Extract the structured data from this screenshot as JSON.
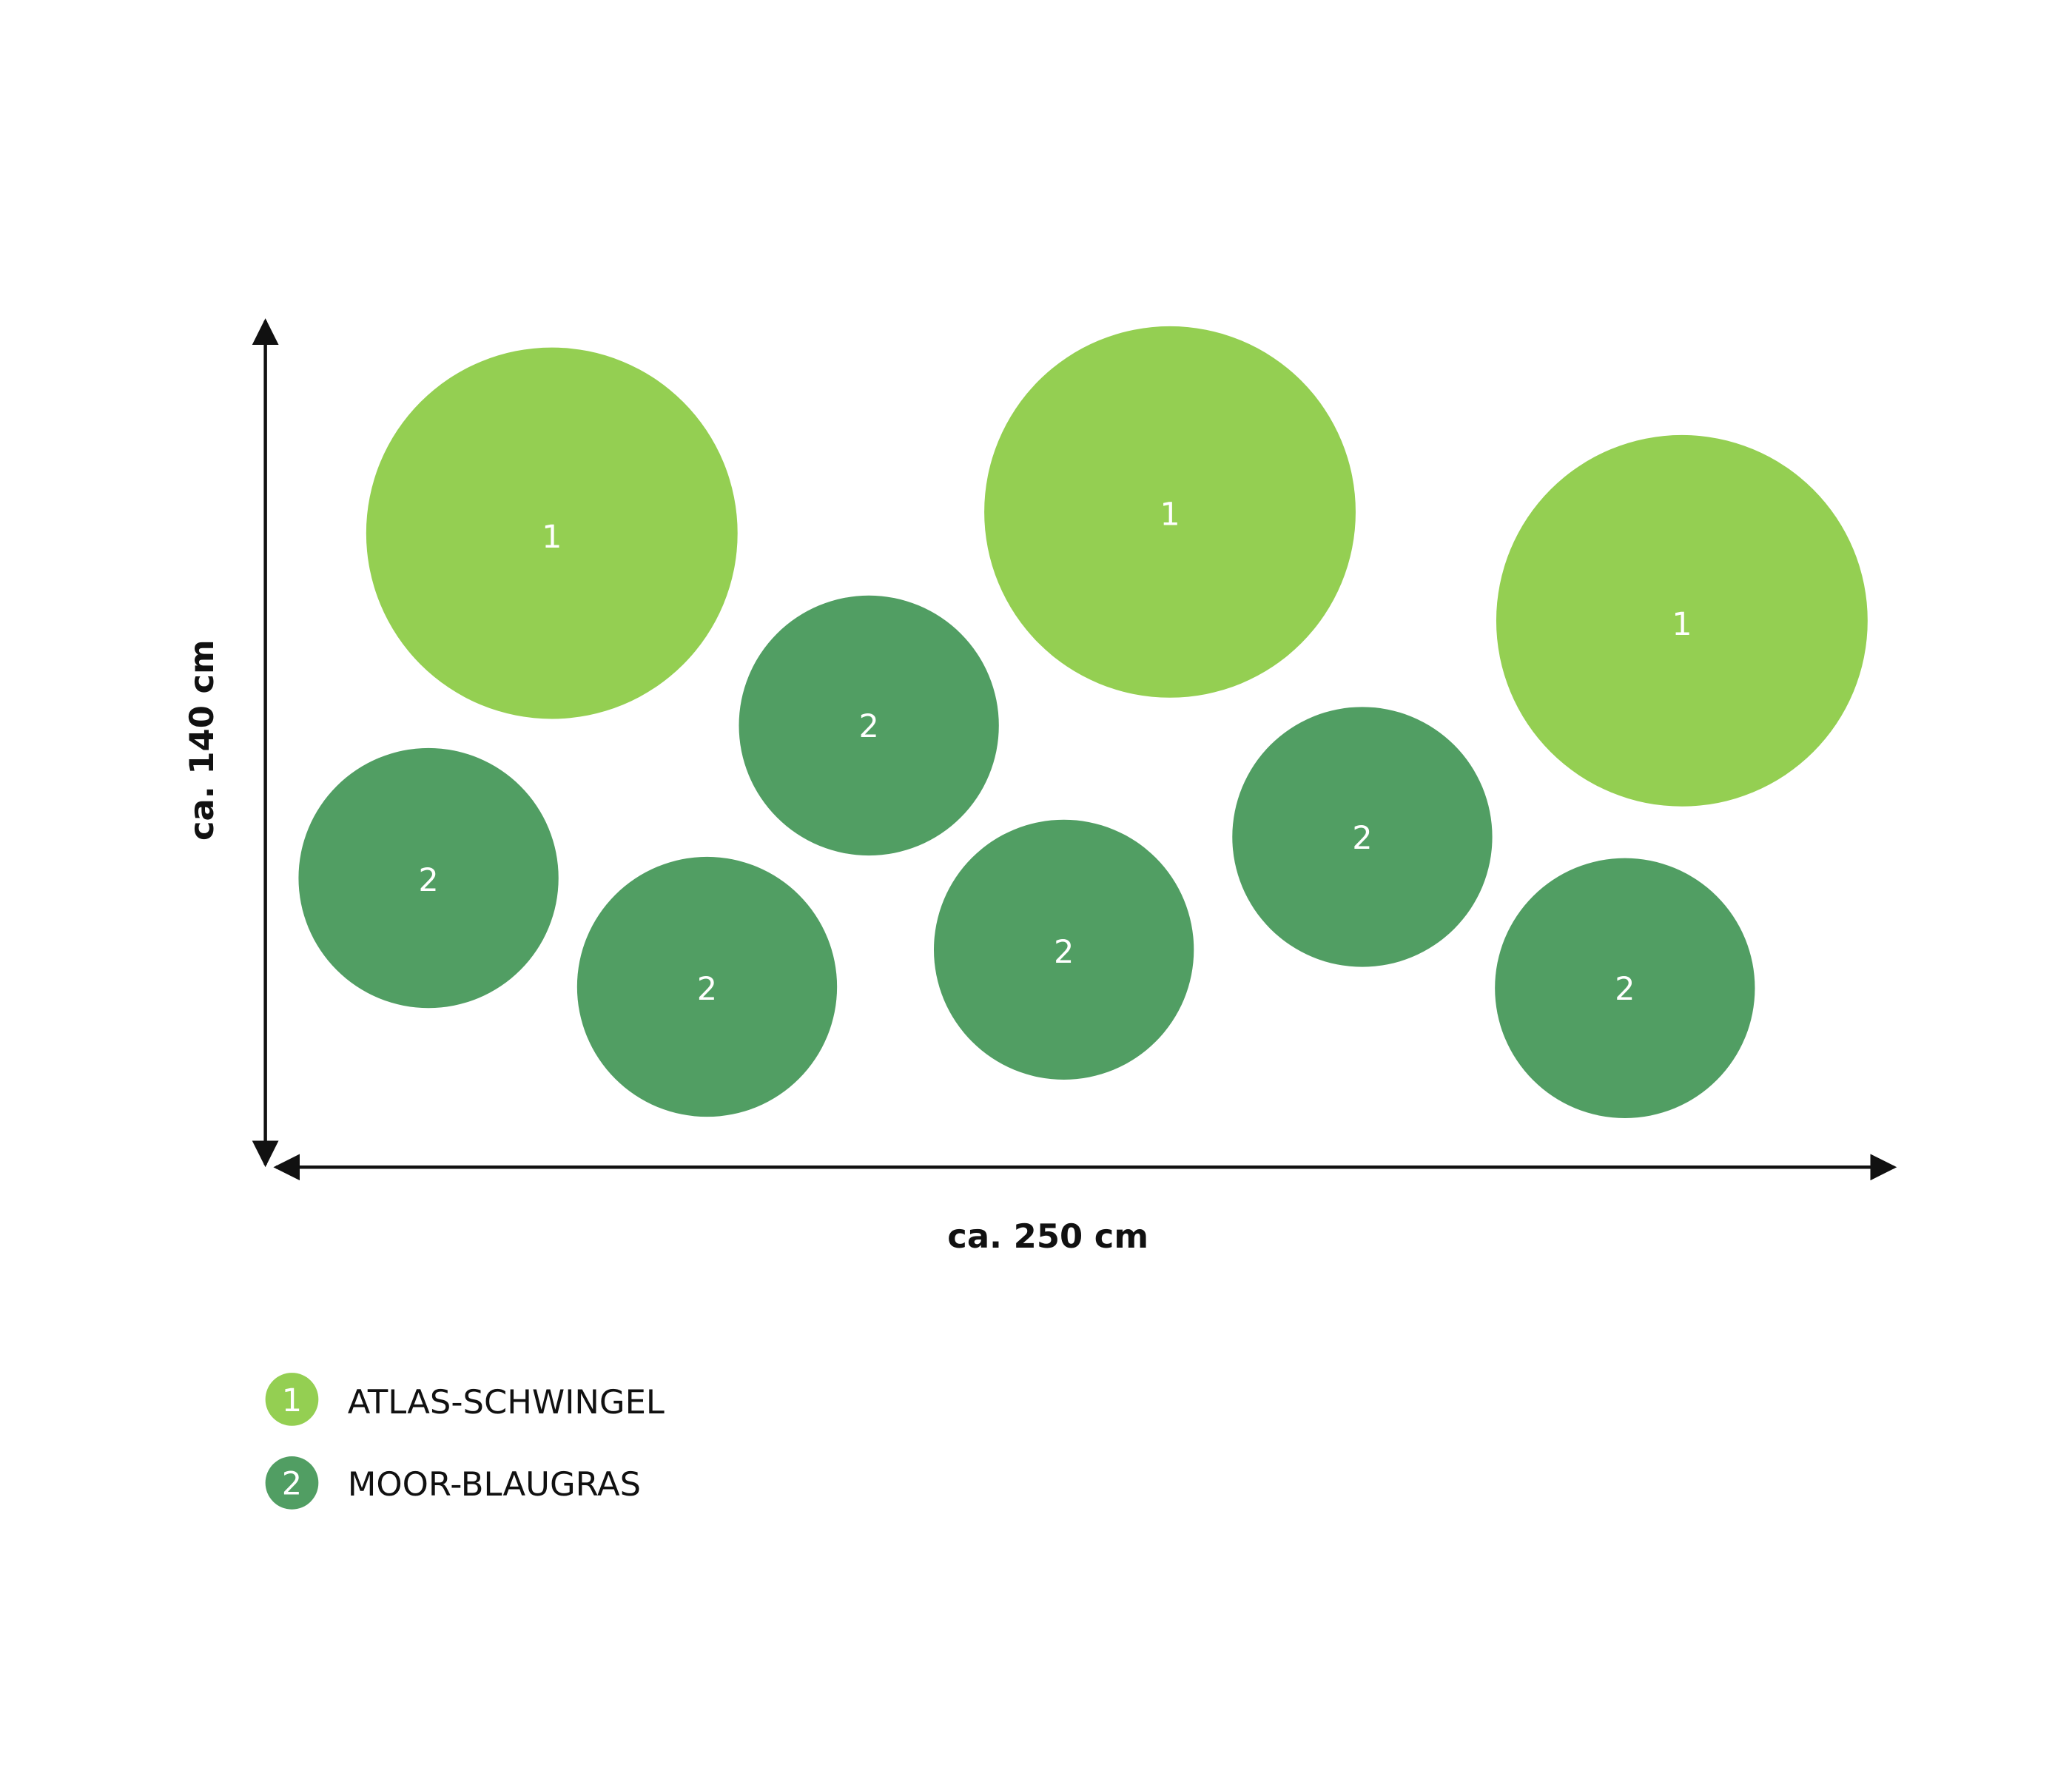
{
  "dimensions": {
    "height": "ca. 140 cm",
    "width": "ca. 250 cm"
  },
  "plants": [
    {
      "label": "1"
    },
    {
      "label": "1"
    },
    {
      "label": "1"
    },
    {
      "label": "2"
    },
    {
      "label": "2"
    },
    {
      "label": "2"
    },
    {
      "label": "2"
    },
    {
      "label": "2"
    },
    {
      "label": "2"
    }
  ],
  "legend": [
    {
      "key": "1",
      "name": "ATLAS-SCHWINGEL"
    },
    {
      "key": "2",
      "name": "MOOR-BLAUGRAS"
    }
  ]
}
